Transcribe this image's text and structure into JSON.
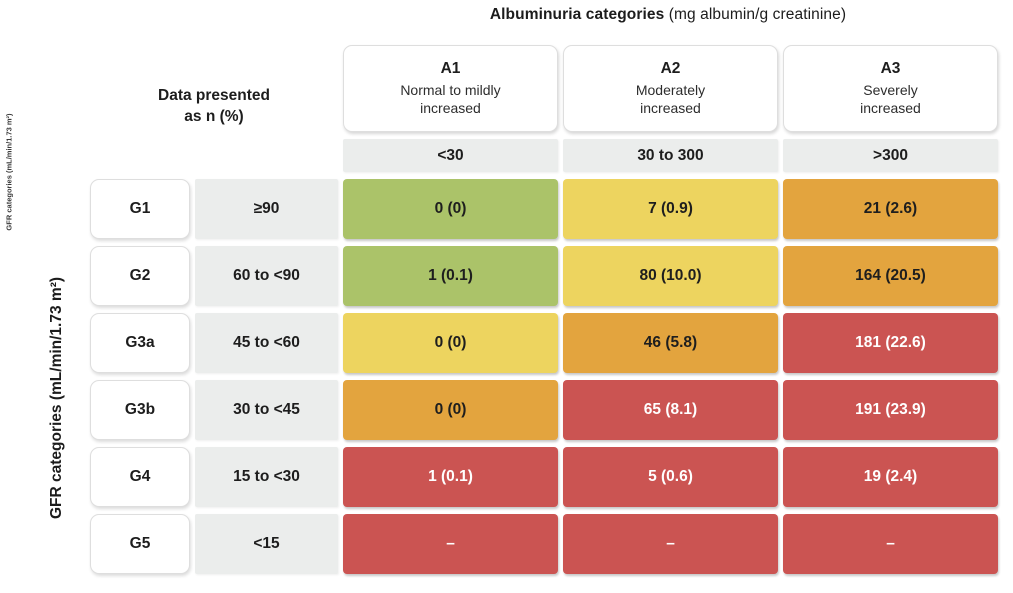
{
  "title": {
    "bold": "Albuminuria categories",
    "normal": "(mg albumin/g creatinine)"
  },
  "note": "Data presented\nas n (%)",
  "y_axis": {
    "label": "GFR categories (mL/min/1.73 m²)",
    "small_label": "GFR categories (mL/min/1.73 m²)"
  },
  "columns": [
    {
      "id": "A1",
      "desc": "Normal to mildly\nincreased",
      "range": "<30"
    },
    {
      "id": "A2",
      "desc": "Moderately\nincreased",
      "range": "30 to 300"
    },
    {
      "id": "A3",
      "desc": "Severely\nincreased",
      "range": ">300"
    }
  ],
  "rows": [
    {
      "id": "G1",
      "range": "≥90",
      "cells": [
        {
          "text": "0 (0)",
          "color": "green"
        },
        {
          "text": "7 (0.9)",
          "color": "yellow"
        },
        {
          "text": "21 (2.6)",
          "color": "orange"
        }
      ]
    },
    {
      "id": "G2",
      "range": "60 to <90",
      "cells": [
        {
          "text": "1 (0.1)",
          "color": "green"
        },
        {
          "text": "80 (10.0)",
          "color": "yellow"
        },
        {
          "text": "164 (20.5)",
          "color": "orange"
        }
      ]
    },
    {
      "id": "G3a",
      "range": "45 to <60",
      "cells": [
        {
          "text": "0 (0)",
          "color": "yellow"
        },
        {
          "text": "46 (5.8)",
          "color": "orange"
        },
        {
          "text": "181 (22.6)",
          "color": "red"
        }
      ]
    },
    {
      "id": "G3b",
      "range": "30 to <45",
      "cells": [
        {
          "text": "0 (0)",
          "color": "orange"
        },
        {
          "text": "65 (8.1)",
          "color": "red"
        },
        {
          "text": "191 (23.9)",
          "color": "red"
        }
      ]
    },
    {
      "id": "G4",
      "range": "15 to <30",
      "cells": [
        {
          "text": "1 (0.1)",
          "color": "red"
        },
        {
          "text": "5 (0.6)",
          "color": "red"
        },
        {
          "text": "19 (2.4)",
          "color": "red"
        }
      ]
    },
    {
      "id": "G5",
      "range": "<15",
      "cells": [
        {
          "text": "–",
          "color": "red"
        },
        {
          "text": "–",
          "color": "red"
        },
        {
          "text": "–",
          "color": "red"
        }
      ]
    }
  ],
  "colors": {
    "green": {
      "bg": "#abc369",
      "fg": "#1e1e1e"
    },
    "yellow": {
      "bg": "#edd45f",
      "fg": "#1e1e1e"
    },
    "orange": {
      "bg": "#e3a43e",
      "fg": "#1e1e1e"
    },
    "red": {
      "bg": "#cb5452",
      "fg": "#ffffff"
    },
    "header_bg": "#ebedec",
    "card_bg": "#ffffff",
    "card_border": "#dedede"
  },
  "chart_data": {
    "type": "heatmap",
    "title": "Albuminuria categories (mg albumin/g creatinine)",
    "note": "Data presented as n (%)",
    "xlabel": "Albuminuria categories (mg albumin/g creatinine)",
    "ylabel": "GFR categories (mL/min/1.73 m²)",
    "x_categories": [
      "A1 Normal to mildly increased (<30)",
      "A2 Moderately increased (30 to 300)",
      "A3 Severely increased (>300)"
    ],
    "y_categories": [
      "G1 (≥90)",
      "G2 (60 to <90)",
      "G3a (45 to <60)",
      "G3b (30 to <45)",
      "G4 (15 to <30)",
      "G5 (<15)"
    ],
    "values_n": [
      [
        0,
        7,
        21
      ],
      [
        1,
        80,
        164
      ],
      [
        0,
        46,
        181
      ],
      [
        0,
        65,
        191
      ],
      [
        1,
        5,
        19
      ],
      [
        null,
        null,
        null
      ]
    ],
    "values_pct": [
      [
        0,
        0.9,
        2.6
      ],
      [
        0.1,
        10.0,
        20.5
      ],
      [
        0,
        5.8,
        22.6
      ],
      [
        0,
        8.1,
        23.9
      ],
      [
        0.1,
        0.6,
        2.4
      ],
      [
        null,
        null,
        null
      ]
    ],
    "cell_labels": [
      [
        "0 (0)",
        "7 (0.9)",
        "21 (2.6)"
      ],
      [
        "1 (0.1)",
        "80 (10.0)",
        "164 (20.5)"
      ],
      [
        "0 (0)",
        "46 (5.8)",
        "181 (22.6)"
      ],
      [
        "0 (0)",
        "65 (8.1)",
        "191 (23.9)"
      ],
      [
        "1 (0.1)",
        "5 (0.6)",
        "19 (2.4)"
      ],
      [
        "–",
        "–",
        "–"
      ]
    ],
    "cell_colors": [
      [
        "green",
        "yellow",
        "orange"
      ],
      [
        "green",
        "yellow",
        "orange"
      ],
      [
        "yellow",
        "orange",
        "red"
      ],
      [
        "orange",
        "red",
        "red"
      ],
      [
        "red",
        "red",
        "red"
      ],
      [
        "red",
        "red",
        "red"
      ]
    ],
    "legend_position": "none",
    "grid": false
  }
}
